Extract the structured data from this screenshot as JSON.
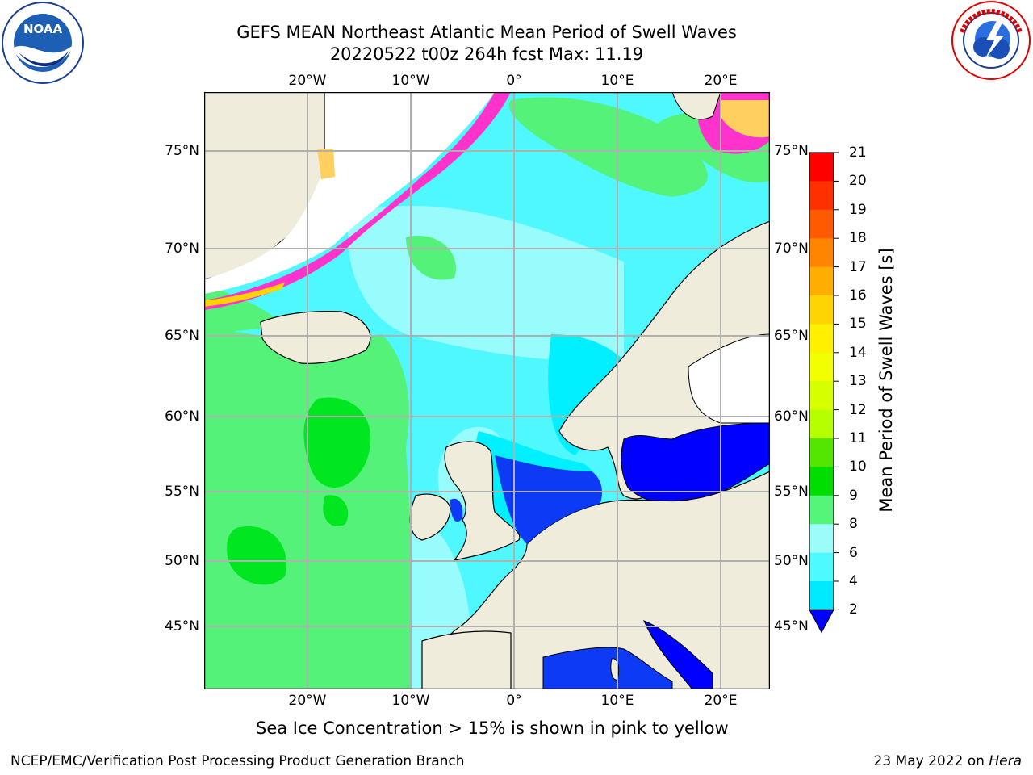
{
  "header": {
    "title_line1": "GEFS MEAN Northeast Atlantic Mean Period of Swell Waves",
    "title_line2": "20220522 t00z 264h fcst   Max: 11.19"
  },
  "logos": {
    "noaa": {
      "text": "NOAA",
      "ring_text": "NATIONAL OCEANIC AND ATMOSPHERIC ADMINISTRATION · U.S. DEPARTMENT OF COMMERCE",
      "icon": "noaa-logo-icon"
    },
    "nws": {
      "text": "NATIONAL WEATHER SERVICE",
      "icon": "nws-logo-icon"
    }
  },
  "map": {
    "lon_labels": [
      "20°W",
      "10°W",
      "0°",
      "10°E",
      "20°E"
    ],
    "lat_labels": [
      "75°N",
      "70°N",
      "65°N",
      "60°N",
      "55°N",
      "50°N",
      "45°N"
    ],
    "colors": {
      "land": "#efecdc",
      "ocean_cyan": "#00f0ff",
      "ocean_light": "#98fcfc",
      "ocean_mid": "#4ff7ff",
      "ocean_green": "#55f27a",
      "ocean_bright_green": "#00e620",
      "shallow_blue": "#0d3af5",
      "deep_blue": "#0000ff",
      "grid": "#b0b0b0"
    }
  },
  "colorbar": {
    "title": "Mean Period of Swell Waves [s]",
    "ticks": [
      "21",
      "20",
      "19",
      "18",
      "17",
      "16",
      "15",
      "14",
      "13",
      "12",
      "11",
      "10",
      "9",
      "8",
      "6",
      "4",
      "2"
    ],
    "colors": [
      "#ff0000",
      "#ff3000",
      "#ff5a00",
      "#ff8400",
      "#ffae00",
      "#ffd400",
      "#fff000",
      "#f2ff00",
      "#d6ff00",
      "#b6ff00",
      "#55e600",
      "#00dd00",
      "#55f57a",
      "#9cfcf9",
      "#4cfaff",
      "#00eaff",
      "#007bff",
      "#0000ff"
    ]
  },
  "caption": "Sea Ice Concentration > 15% is shown in pink to yellow",
  "footer": {
    "left": "NCEP/EMC/Verification Post Processing Product Generation Branch",
    "right_date": "23 May 2022 on ",
    "right_host": "Hera"
  }
}
